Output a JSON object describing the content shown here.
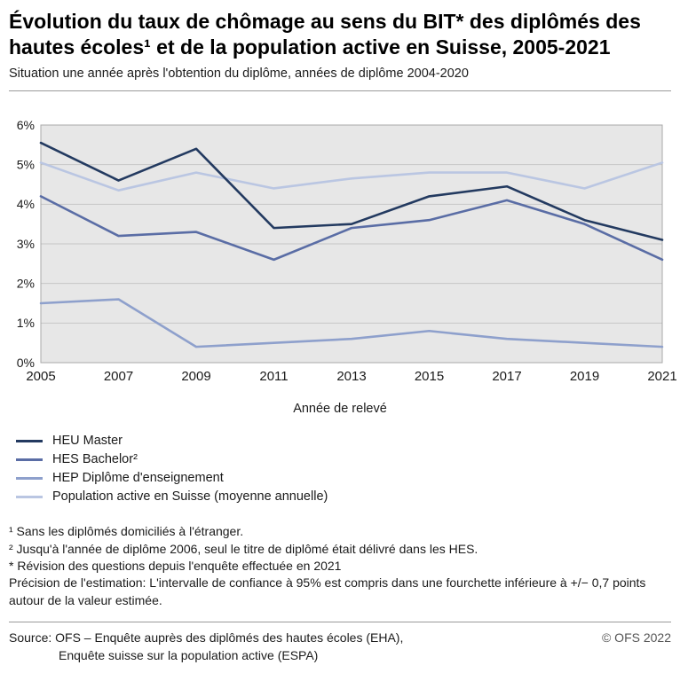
{
  "header": {
    "title": "Évolution du taux de chômage au sens du BIT* des diplômés des hautes écoles¹ et de la population active en Suisse, 2005-2021",
    "subtitle": "Situation une année après l'obtention du diplôme, années de diplôme 2004-2020"
  },
  "chart_data": {
    "type": "line",
    "x": [
      2005,
      2007,
      2009,
      2011,
      2013,
      2015,
      2017,
      2019,
      2021
    ],
    "x_tick_labels": [
      "2005",
      "2007",
      "2009",
      "2011",
      "2013",
      "2015",
      "2017",
      "2019",
      "2021"
    ],
    "xlabel": "Année de relevé",
    "ylabel": "",
    "ylim": [
      0,
      6
    ],
    "y_tick_labels": [
      "0%",
      "1%",
      "2%",
      "3%",
      "4%",
      "5%",
      "6%"
    ],
    "grid": true,
    "legend_position": "bottom-left",
    "plot_background": "#e7e7e7",
    "gridline_color": "#c6c6c6",
    "plot_border_color": "#a8a8a8",
    "series": [
      {
        "name": "HEU Master",
        "color": "#233a60",
        "values": [
          5.55,
          4.6,
          5.4,
          3.4,
          3.5,
          4.2,
          4.45,
          3.6,
          3.1
        ]
      },
      {
        "name": "HES Bachelor²",
        "color": "#5a6da5",
        "values": [
          4.2,
          3.2,
          3.3,
          2.6,
          3.4,
          3.6,
          4.1,
          3.5,
          2.6
        ]
      },
      {
        "name": "HEP Diplôme d'enseignement",
        "color": "#8ea0cc",
        "values": [
          1.5,
          1.6,
          0.4,
          0.5,
          0.6,
          0.8,
          0.6,
          0.5,
          0.4
        ]
      },
      {
        "name": "Population active en Suisse (moyenne annuelle)",
        "color": "#bac6e2",
        "values": [
          5.05,
          4.35,
          4.8,
          4.4,
          4.65,
          4.8,
          4.8,
          4.4,
          5.05
        ]
      }
    ]
  },
  "footnotes": [
    "¹ Sans les diplômés domiciliés à l'étranger.",
    "² Jusqu'à l'année de diplôme 2006, seul le titre de diplômé était délivré dans les HES.",
    "* Révision des questions depuis l'enquête effectuée en 2021",
    "Précision de l'estimation: L'intervalle de confiance à 95% est compris dans une fourchette inférieure à +/− 0,7 points autour de la valeur estimée."
  ],
  "footer": {
    "source_line1": "Source: OFS – Enquête auprès des diplômés des hautes écoles (EHA),",
    "source_line2": "Enquête suisse sur la population active (ESPA)",
    "copyright": "© OFS 2022"
  }
}
